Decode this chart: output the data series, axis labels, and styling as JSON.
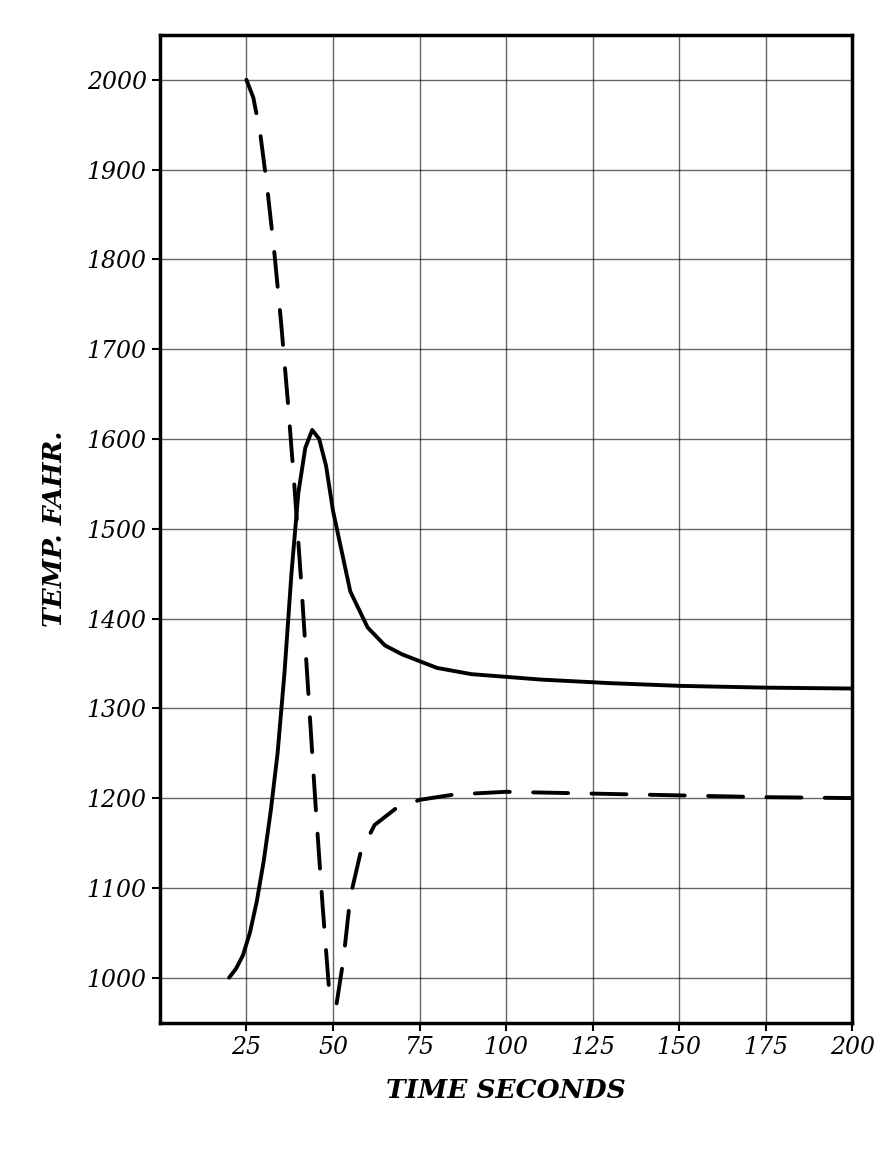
{
  "title": "",
  "xlabel": "TIME SECONDS",
  "ylabel": "TEMP. FAHR.",
  "xlim": [
    0,
    200
  ],
  "ylim": [
    950,
    2050
  ],
  "xticks": [
    25,
    50,
    75,
    100,
    125,
    150,
    175,
    200
  ],
  "yticks": [
    1000,
    1100,
    1200,
    1300,
    1400,
    1500,
    1600,
    1700,
    1800,
    1900,
    2000
  ],
  "background": "#ffffff",
  "heating_curve": {
    "x": [
      20,
      22,
      24,
      26,
      28,
      30,
      32,
      34,
      36,
      38,
      40,
      42,
      44,
      46,
      48,
      50,
      55,
      60,
      65,
      70,
      80,
      90,
      100,
      110,
      120,
      130,
      150,
      175,
      200
    ],
    "y": [
      1000,
      1010,
      1025,
      1050,
      1085,
      1130,
      1185,
      1250,
      1340,
      1450,
      1540,
      1590,
      1610,
      1600,
      1570,
      1520,
      1430,
      1390,
      1370,
      1360,
      1345,
      1338,
      1335,
      1332,
      1330,
      1328,
      1325,
      1323,
      1322
    ]
  },
  "cooling_curve": {
    "x": [
      25,
      27,
      29,
      31,
      33,
      35,
      37,
      39,
      41,
      43,
      45,
      47,
      49,
      51,
      53,
      55,
      58,
      62,
      68,
      75,
      85,
      100,
      125,
      150,
      175,
      200
    ],
    "y": [
      2000,
      1980,
      1940,
      1880,
      1810,
      1730,
      1640,
      1540,
      1430,
      1310,
      1190,
      1080,
      980,
      970,
      1020,
      1090,
      1140,
      1170,
      1188,
      1198,
      1204,
      1207,
      1205,
      1203,
      1201,
      1200
    ]
  },
  "line_color": "#000000",
  "linewidth": 2.8
}
